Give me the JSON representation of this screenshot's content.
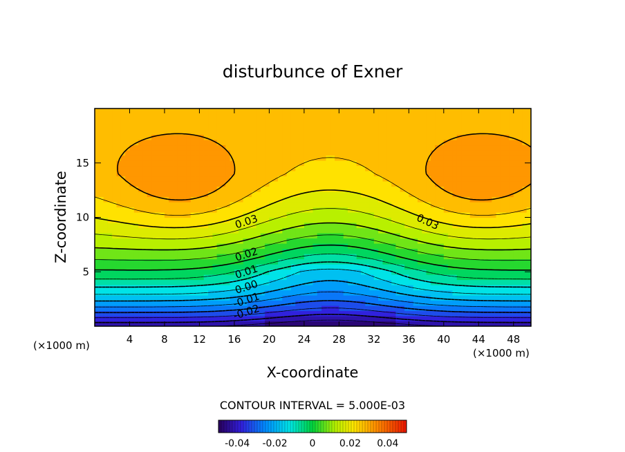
{
  "chart_data": {
    "type": "heatmap",
    "title": "disturbunce of Exner",
    "xlabel": "X-coordinate",
    "ylabel": "Z-coordinate",
    "x_unit": "(×1000 m)",
    "y_unit": "(×1000 m)",
    "xlim": [
      0,
      50
    ],
    "ylim": [
      0,
      20
    ],
    "x_ticks": [
      4,
      8,
      12,
      16,
      20,
      24,
      28,
      32,
      36,
      40,
      44,
      48
    ],
    "y_ticks": [
      5,
      10,
      15
    ],
    "contour_interval_text": "CONTOUR INTERVAL = 5.000E-03",
    "contour_labels": [
      {
        "text": "0.03",
        "x": 17.5,
        "z": 9.3
      },
      {
        "text": "0.03",
        "x": 38.0,
        "z": 9.3
      },
      {
        "text": "0.02",
        "x": 17.5,
        "z": 6.3
      },
      {
        "text": "0.01",
        "x": 17.5,
        "z": 4.7
      },
      {
        "text": "0.00",
        "x": 17.5,
        "z": 3.3
      },
      {
        "text": "-0.01",
        "x": 17.5,
        "z": 2.1
      },
      {
        "text": "-0.02",
        "x": 17.5,
        "z": 1.0
      }
    ],
    "field_summary": {
      "max": 0.045,
      "max_locations": [
        {
          "x": 10,
          "z": 12.5
        },
        {
          "x": 44,
          "z": 12.5
        }
      ],
      "min": -0.045,
      "min_location": {
        "x": 27,
        "z": 0
      }
    },
    "colorbar": {
      "range": [
        -0.05,
        0.05
      ],
      "tick_values": [
        -0.04,
        -0.02,
        0,
        0.02,
        0.04
      ],
      "tick_labels": [
        "-0.04",
        "-0.02",
        "0",
        "0.02",
        "0.04"
      ]
    }
  }
}
